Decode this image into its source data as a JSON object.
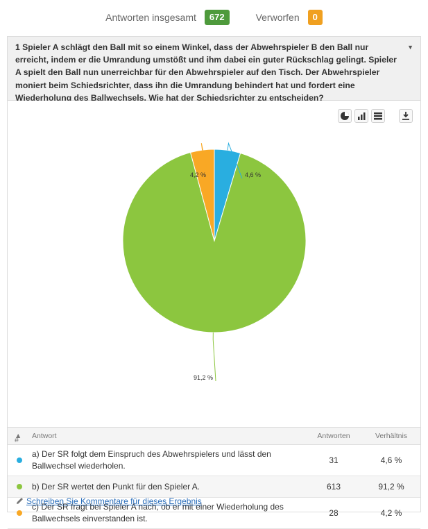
{
  "summary": {
    "total_label": "Antworten insgesamt",
    "total_value": "672",
    "discarded_label": "Verworfen",
    "discarded_value": "0"
  },
  "question": {
    "text": "1 Spieler A schlägt den Ball mit so einem Winkel, dass der Abwehrspieler B den Ball nur erreicht, indem er die Umrandung umstößt und ihm dabei ein guter Rückschlag gelingt. Spieler A spielt den Ball nun unerreichbar für den Abwehrspieler auf den Tisch. Der Abwehrspieler moniert beim Schiedsrichter, dass ihn die Umrandung behindert hat und fordert eine Wiederholung des Ballwechsels. Wie hat der Schiedsrichter zu entscheiden?"
  },
  "toolbar": {
    "icons": [
      "pie-chart-icon",
      "bar-chart-icon",
      "table-icon",
      "download-icon"
    ]
  },
  "chart_data": {
    "type": "pie",
    "values": [
      4.6,
      91.2,
      4.2
    ],
    "labels": [
      "4,6 %",
      "91,2 %",
      "4,2 %"
    ],
    "colors": [
      "#29aee0",
      "#8cc63f",
      "#f9a825"
    ]
  },
  "table": {
    "headers": {
      "num": "#",
      "answer": "Antwort",
      "count": "Antworten",
      "ratio": "Verhältnis"
    },
    "rows": [
      {
        "answer_line1": "a) Der SR folgt dem Einspruch des Abwehrspielers und lässt den",
        "answer_line2": "Ballwechsel wiederholen.",
        "count": "31",
        "ratio": "4,6 %",
        "color": "#29aee0"
      },
      {
        "answer_line1": "b) Der SR wertet den Punkt für den Spieler A.",
        "answer_line2": "",
        "count": "613",
        "ratio": "91,2 %",
        "color": "#8cc63f"
      },
      {
        "answer_line1": "c) Der SR fragt bei Spieler A nach, ob er mit einer Wiederholung des",
        "answer_line2": "Ballwechsels einverstanden ist.",
        "count": "28",
        "ratio": "4,2 %",
        "color": "#f9a825"
      }
    ]
  },
  "comment_link": "Schreiben Sie Kommentare für dieses Ergebnis"
}
